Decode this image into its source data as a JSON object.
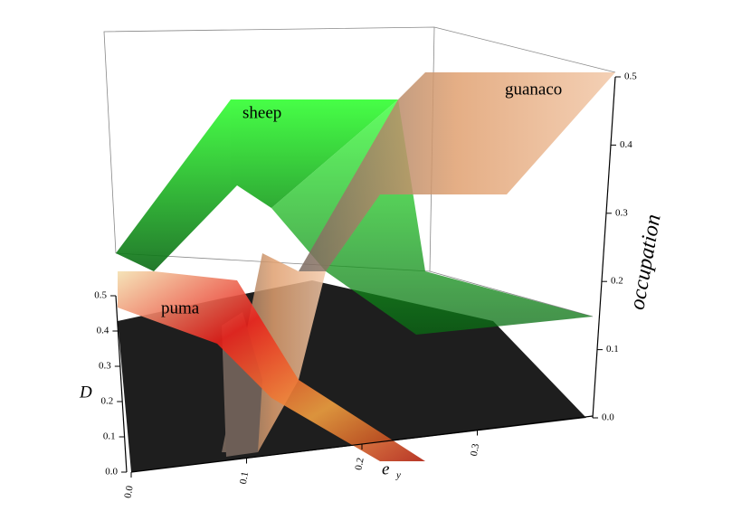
{
  "chart_data": {
    "type": "surface3d",
    "x_label": "e",
    "x_label_subscript": "y",
    "y_label": "D",
    "z_label": "occupation",
    "xlim": [
      0,
      0.4
    ],
    "xticks": [
      {
        "value": 0,
        "label": "0.0"
      },
      0.1,
      0.2,
      0.3
    ],
    "ylim": [
      0,
      0.5
    ],
    "yticks": [
      {
        "value": 0,
        "label": "0.0"
      },
      0.1,
      0.2,
      0.3,
      0.4,
      0.5
    ],
    "zlim": [
      0,
      0.5
    ],
    "zticks": [
      {
        "value": 0,
        "label": "0.0"
      },
      0.1,
      0.2,
      0.3,
      0.4,
      0.5
    ],
    "series": [
      {
        "name": "sheep",
        "color": "#22ee22"
      },
      {
        "name": "guanaco",
        "color": "#e8b088"
      },
      {
        "name": "puma",
        "color": "#e83a1c"
      }
    ]
  }
}
